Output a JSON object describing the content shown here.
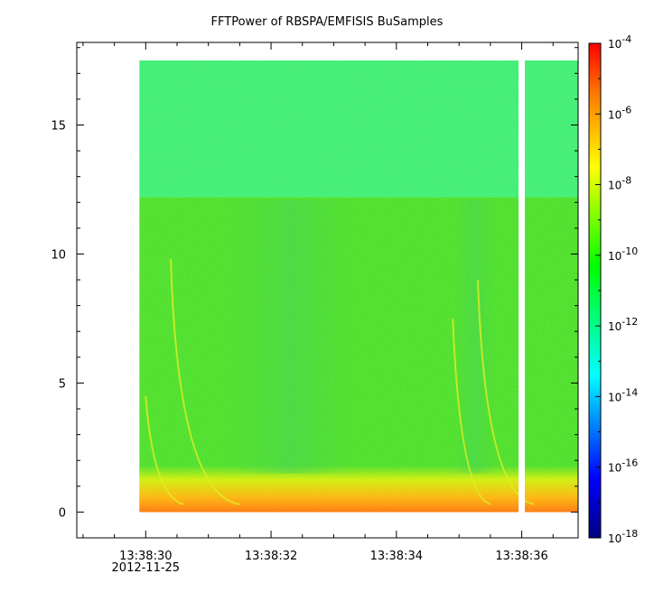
{
  "chart_data": {
    "type": "heatmap",
    "title": "FFTPower of RBSPA/EMFISIS  BuSamples",
    "xlabel": "",
    "ylabel": "",
    "x_ticks": [
      {
        "value": 30,
        "label": "13:38:30",
        "sublabel": "2012-11-25"
      },
      {
        "value": 32,
        "label": "13:38:32",
        "sublabel": ""
      },
      {
        "value": 34,
        "label": "13:38:34",
        "sublabel": ""
      },
      {
        "value": 36,
        "label": "13:38:36",
        "sublabel": ""
      }
    ],
    "xlim_seconds": [
      28.9,
      36.9
    ],
    "data_x_range_seconds": [
      29.9,
      36.9
    ],
    "data_gap_seconds": [
      35.95,
      36.05
    ],
    "y_ticks": [
      0,
      5,
      10,
      15
    ],
    "ylim": [
      -1,
      18.2
    ],
    "data_y_range": [
      0,
      17.5
    ],
    "colorbar": {
      "scale": "log",
      "min": 1e-18,
      "max": 0.0001,
      "tick_exponents": [
        -18,
        -16,
        -14,
        -12,
        -10,
        -8,
        -6,
        -4
      ],
      "colors": [
        "#000080",
        "#0000ff",
        "#00ffff",
        "#00ff00",
        "#ffff00",
        "#ff0000"
      ]
    },
    "power_bands": [
      {
        "y_from": 0,
        "y_to": 0.5,
        "level": "-7",
        "color": "#ff9900"
      },
      {
        "y_from": 0.5,
        "y_to": 1.5,
        "level": "-9",
        "color": "#ccee00"
      },
      {
        "y_from": 1.5,
        "y_to": 12.2,
        "level": "-10.5",
        "color": "#33dd22"
      },
      {
        "y_from": 12.2,
        "y_to": 17.5,
        "level": "-11.5",
        "color": "#22ee77"
      }
    ],
    "grid": false,
    "legend": "colorbar-right"
  }
}
